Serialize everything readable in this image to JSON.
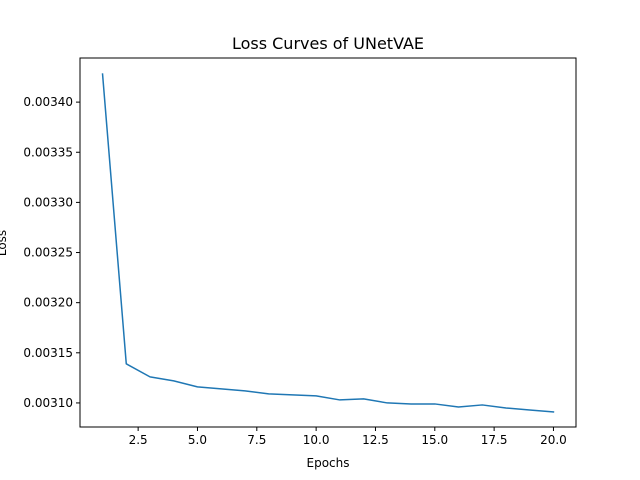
{
  "chart_data": {
    "type": "line",
    "title": "Loss Curves of UNetVAE",
    "xlabel": "Epochs",
    "ylabel": "Loss",
    "xlim": [
      0.05,
      20.95
    ],
    "ylim": [
      0.003076,
      0.003444
    ],
    "xticks": [
      2.5,
      5.0,
      7.5,
      10.0,
      12.5,
      15.0,
      17.5,
      20.0
    ],
    "xtick_labels": [
      "2.5",
      "5.0",
      "7.5",
      "10.0",
      "12.5",
      "15.0",
      "17.5",
      "20.0"
    ],
    "yticks": [
      0.0031,
      0.00315,
      0.0032,
      0.00325,
      0.0033,
      0.00335,
      0.0034
    ],
    "ytick_labels": [
      "0.00310",
      "0.00315",
      "0.00320",
      "0.00325",
      "0.00330",
      "0.00335",
      "0.00340"
    ],
    "grid": false,
    "color": "#1f77b4",
    "series": [
      {
        "x": [
          1,
          2,
          3,
          4,
          5,
          6,
          7,
          8,
          9,
          10,
          11,
          12,
          13,
          14,
          15,
          16,
          17,
          18,
          19,
          20
        ],
        "values": [
          0.003428,
          0.003139,
          0.003126,
          0.003122,
          0.003116,
          0.003114,
          0.003112,
          0.003109,
          0.003108,
          0.003107,
          0.003103,
          0.003104,
          0.0031,
          0.003099,
          0.003099,
          0.003096,
          0.003098,
          0.003095,
          0.003093,
          0.003091
        ]
      }
    ]
  }
}
